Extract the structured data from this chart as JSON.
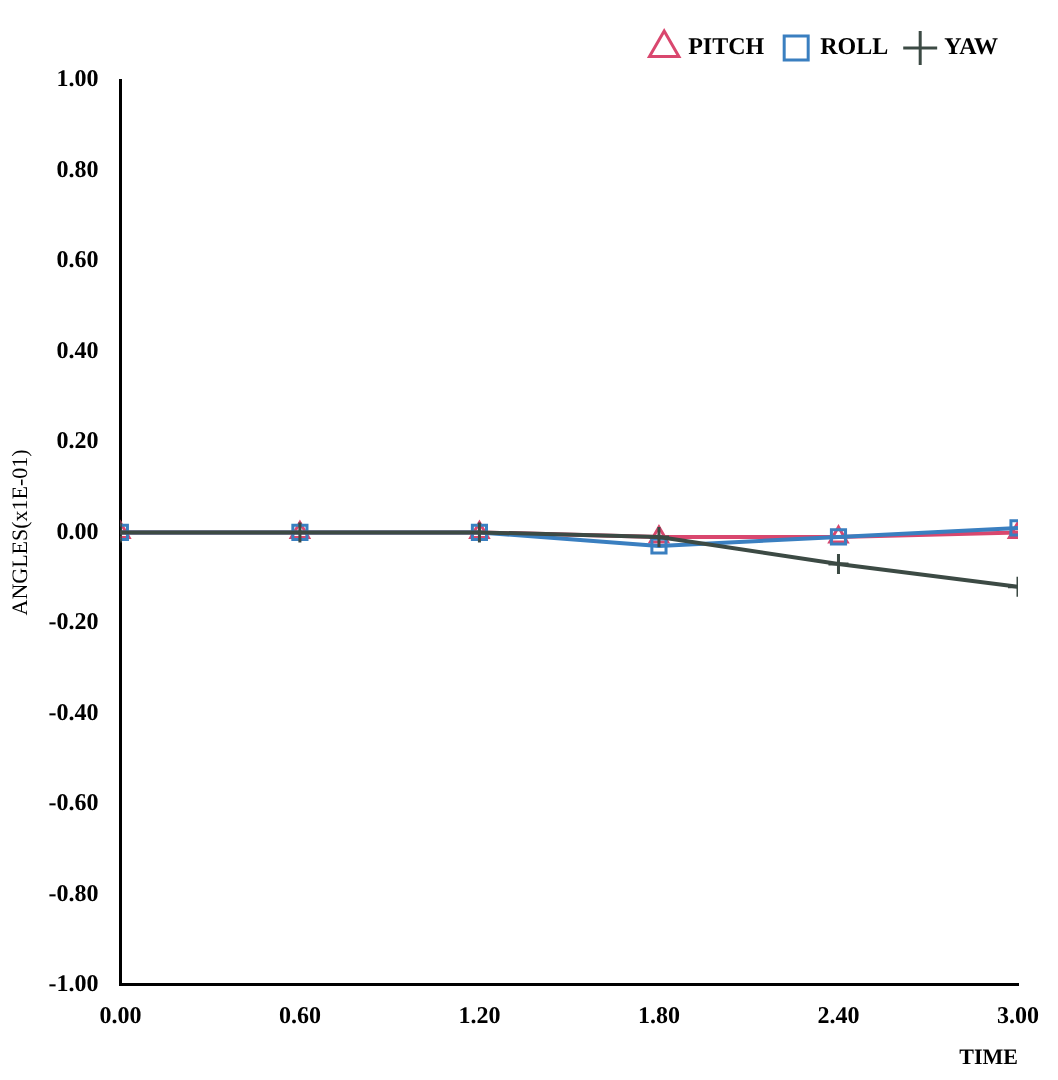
{
  "chart_data": {
    "type": "line",
    "xlabel": "TIME",
    "ylabel": "ANGLES(x1E-01)",
    "x": [
      0,
      0.6,
      1.2,
      1.8,
      2.4,
      3.0
    ],
    "series": [
      {
        "name": "PITCH",
        "color": "#d9476e",
        "marker": "triangle",
        "values": [
          0,
          0,
          0,
          -0.01,
          -0.01,
          0
        ]
      },
      {
        "name": "ROLL",
        "color": "#3a7fc0",
        "marker": "square",
        "values": [
          0,
          0,
          0,
          -0.03,
          -0.01,
          0.01
        ]
      },
      {
        "name": "YAW",
        "color": "#3c4a44",
        "marker": "cross",
        "values": [
          0,
          0,
          0,
          -0.01,
          -0.07,
          -0.12
        ]
      }
    ],
    "xlim": [
      0,
      3.0
    ],
    "xticks": [
      {
        "value": 0,
        "label": "0.00"
      },
      {
        "value": 0.6,
        "label": "0.60"
      },
      {
        "value": 1.2,
        "label": "1.20"
      },
      {
        "value": 1.8,
        "label": "1.80"
      },
      {
        "value": 2.4,
        "label": "2.40"
      },
      {
        "value": 3.0,
        "label": "3.00"
      }
    ],
    "ylim": [
      -1,
      1
    ],
    "yticks": [
      {
        "value": 1,
        "label": "1.00"
      },
      {
        "value": 0.8,
        "label": "0.80"
      },
      {
        "value": 0.6,
        "label": "0.60"
      },
      {
        "value": 0.4,
        "label": "0.40"
      },
      {
        "value": 0.2,
        "label": "0.20"
      },
      {
        "value": 0,
        "label": "0.00"
      },
      {
        "value": -0.2,
        "label": "-0.20"
      },
      {
        "value": -0.4,
        "label": "-0.40"
      },
      {
        "value": -0.6,
        "label": "-0.60"
      },
      {
        "value": -0.8,
        "label": "-0.80"
      },
      {
        "value": -1,
        "label": "-1.00"
      }
    ],
    "grid": false,
    "legend": "top right"
  }
}
